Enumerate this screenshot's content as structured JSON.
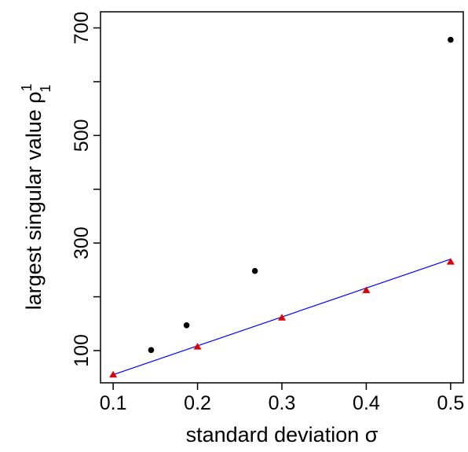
{
  "chart_data": {
    "type": "scatter",
    "title": "",
    "xlabel": "standard deviation σ",
    "ylabel": "largest singular value ρ",
    "ylabel_superscript": "1",
    "ylabel_subscript": "1",
    "xlim": [
      0.085,
      0.515
    ],
    "ylim": [
      40,
      730
    ],
    "x_ticks": [
      0.1,
      0.2,
      0.3,
      0.4,
      0.5
    ],
    "x_tick_labels": [
      "0.1",
      "0.2",
      "0.3",
      "0.4",
      "0.5"
    ],
    "y_ticks": [
      100,
      200,
      300,
      400,
      500,
      600,
      700
    ],
    "y_tick_labels": [
      "100",
      "",
      "300",
      "",
      "500",
      "",
      "700"
    ],
    "grid": false,
    "series": [
      {
        "kind": "points",
        "marker": "circle",
        "color": "#000000",
        "points": [
          [
            0.145,
            101
          ],
          [
            0.187,
            147
          ],
          [
            0.268,
            248
          ],
          [
            0.5,
            678
          ]
        ]
      },
      {
        "kind": "points",
        "marker": "triangle",
        "color": "#dd0000",
        "points": [
          [
            0.1,
            55
          ],
          [
            0.2,
            107
          ],
          [
            0.3,
            161
          ],
          [
            0.4,
            212
          ],
          [
            0.5,
            265
          ]
        ]
      },
      {
        "kind": "line",
        "color": "#0000ff",
        "points": [
          [
            0.1,
            55
          ],
          [
            0.5,
            270
          ]
        ]
      }
    ]
  }
}
